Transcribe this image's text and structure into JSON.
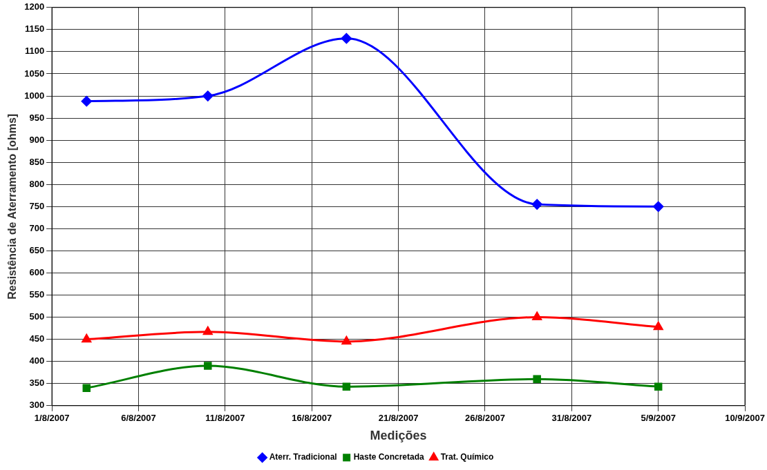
{
  "chart_data": {
    "type": "line",
    "xlabel": "Medições",
    "ylabel": "Resistência de Aterramento [ohms]",
    "x": [
      "2007-08-03",
      "2007-08-10",
      "2007-08-18",
      "2007-08-29",
      "2007-09-05"
    ],
    "series": [
      {
        "name": "Aterr. Tradicional",
        "color": "#0000ff",
        "marker": "diamond",
        "values": [
          988,
          1000,
          1130,
          755,
          750
        ]
      },
      {
        "name": "Haste Concretada",
        "color": "#008000",
        "marker": "square",
        "values": [
          340,
          390,
          343,
          360,
          343
        ]
      },
      {
        "name": "Trat. Químico",
        "color": "#ff0000",
        "marker": "triangle",
        "values": [
          450,
          467,
          445,
          500,
          478
        ]
      }
    ],
    "xlim": [
      "2007-08-01",
      "2007-09-10"
    ],
    "xticks": [
      {
        "value": "2007-08-01",
        "label": "1/8/2007"
      },
      {
        "value": "2007-08-06",
        "label": "6/8/2007"
      },
      {
        "value": "2007-08-11",
        "label": "11/8/2007"
      },
      {
        "value": "2007-08-16",
        "label": "16/8/2007"
      },
      {
        "value": "2007-08-21",
        "label": "21/8/2007"
      },
      {
        "value": "2007-08-26",
        "label": "26/8/2007"
      },
      {
        "value": "2007-08-31",
        "label": "31/8/2007"
      },
      {
        "value": "2007-09-05",
        "label": "5/9/2007"
      },
      {
        "value": "2007-09-10",
        "label": "10/9/2007"
      }
    ],
    "ylim": [
      300,
      1200
    ],
    "yticks": [
      300,
      350,
      400,
      450,
      500,
      550,
      600,
      650,
      700,
      750,
      800,
      850,
      900,
      950,
      1000,
      1050,
      1100,
      1150,
      1200
    ],
    "grid": true,
    "legend": "bottom"
  }
}
